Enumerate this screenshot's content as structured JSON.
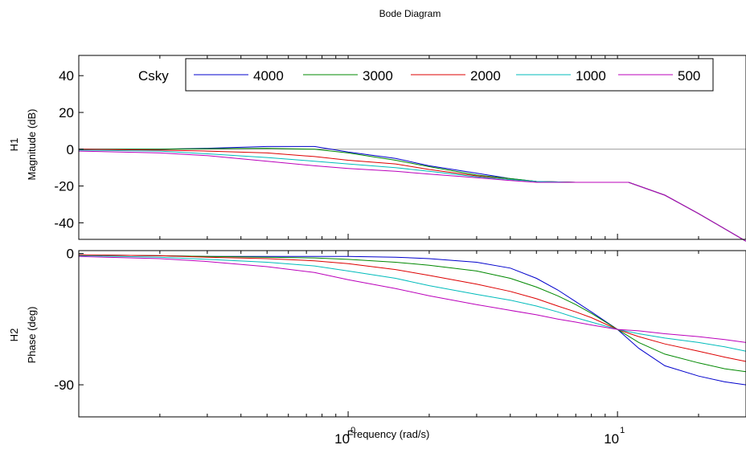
{
  "title": "Bode Diagram",
  "colors": {
    "4000": "#0000CC",
    "3000": "#008800",
    "2000": "#DD0000",
    "1000": "#00BBBB",
    "500": "#BB00BB",
    "zero_line": "#999999"
  },
  "legend": {
    "title": "Csky",
    "entries": [
      "4000",
      "3000",
      "2000",
      "1000",
      "500"
    ],
    "placement": "top"
  },
  "chart_data": [
    {
      "type": "line",
      "panel": "magnitude",
      "ylabel_top": "H1",
      "ylabel": "Magnitude (dB)",
      "xscale": "log",
      "xlim": [
        0.1,
        30
      ],
      "ylim": [
        -49,
        51
      ],
      "yticks": [
        40,
        20,
        0,
        -20,
        -40
      ],
      "ytick_labels": [
        "40",
        "20",
        "0",
        "-20",
        "-40"
      ],
      "reference_line": 0,
      "x": [
        0.1,
        0.2,
        0.3,
        0.5,
        0.75,
        1,
        1.5,
        2,
        3,
        4,
        5,
        7,
        10,
        11,
        15,
        20,
        30
      ],
      "series": [
        {
          "name": "4000",
          "values": [
            0,
            0,
            0.5,
            1.5,
            1.5,
            -1.5,
            -5,
            -9,
            -13,
            -16,
            -17.5,
            -18,
            -18,
            -18,
            -25,
            -35,
            -50
          ]
        },
        {
          "name": "3000",
          "values": [
            0,
            0,
            0.3,
            0.5,
            0,
            -2,
            -6,
            -9.5,
            -14,
            -16,
            -17.5,
            -18,
            -18,
            -18,
            -25,
            -35,
            -50
          ]
        },
        {
          "name": "2000",
          "values": [
            0,
            -0.5,
            -1,
            -2,
            -4,
            -6,
            -8,
            -11,
            -14.5,
            -16.5,
            -17.5,
            -18,
            -18,
            -18,
            -25,
            -35,
            -50
          ]
        },
        {
          "name": "1000",
          "values": [
            -0.5,
            -1,
            -2.5,
            -4.5,
            -6.5,
            -8,
            -10,
            -12,
            -15,
            -16.5,
            -17.5,
            -18,
            -18,
            -18,
            -25,
            -35,
            -50
          ]
        },
        {
          "name": "500",
          "values": [
            -1,
            -2,
            -3.5,
            -6.5,
            -9,
            -10.5,
            -12,
            -13.5,
            -15.5,
            -17,
            -18,
            -18,
            -18,
            -18,
            -25,
            -35,
            -50
          ]
        }
      ]
    },
    {
      "type": "line",
      "panel": "phase",
      "ylabel_top": "H2",
      "ylabel": "Phase (deg)",
      "xscale": "log",
      "xlim": [
        0.1,
        30
      ],
      "xlabel": "Frequency  (rad/s)",
      "ylim": [
        -112,
        2
      ],
      "yticks": [
        0,
        -90
      ],
      "ytick_labels": [
        "0",
        "-90"
      ],
      "x_decade_ticks": [
        1,
        10
      ],
      "x_decade_labels": [
        "10",
        "10"
      ],
      "x_decade_exponents": [
        "0",
        "1"
      ],
      "x": [
        0.1,
        0.2,
        0.3,
        0.5,
        0.75,
        1,
        1.5,
        2,
        3,
        4,
        5,
        6,
        7,
        8,
        10,
        12,
        15,
        20,
        25,
        30
      ],
      "series": [
        {
          "name": "4000",
          "values": [
            -1,
            -1.5,
            -2,
            -2,
            -2,
            -2,
            -2.5,
            -3.5,
            -6,
            -10,
            -17,
            -25,
            -33,
            -40,
            -52,
            -65,
            -77,
            -84,
            -88,
            -90
          ]
        },
        {
          "name": "3000",
          "values": [
            -1,
            -1.5,
            -2,
            -2.5,
            -3,
            -4,
            -6,
            -8,
            -12,
            -17,
            -23,
            -29,
            -35,
            -41,
            -52,
            -61,
            -69,
            -75,
            -79,
            -81
          ]
        },
        {
          "name": "2000",
          "values": [
            -1,
            -1.5,
            -2.5,
            -3.5,
            -5,
            -7,
            -11,
            -15,
            -21,
            -26,
            -31,
            -36,
            -40,
            -44,
            -52,
            -57,
            -62,
            -67,
            -71,
            -74
          ]
        },
        {
          "name": "1000",
          "values": [
            -1.5,
            -2.5,
            -4,
            -6,
            -8.5,
            -12,
            -17,
            -22,
            -28,
            -32,
            -36,
            -40,
            -44,
            -47,
            -52,
            -55,
            -58,
            -61,
            -64,
            -67
          ]
        },
        {
          "name": "500",
          "values": [
            -2,
            -3.5,
            -5.5,
            -9,
            -13,
            -18,
            -24,
            -29,
            -35,
            -39,
            -42,
            -45,
            -47,
            -49,
            -52,
            -53,
            -55,
            -57,
            -59,
            -61
          ]
        }
      ]
    }
  ]
}
